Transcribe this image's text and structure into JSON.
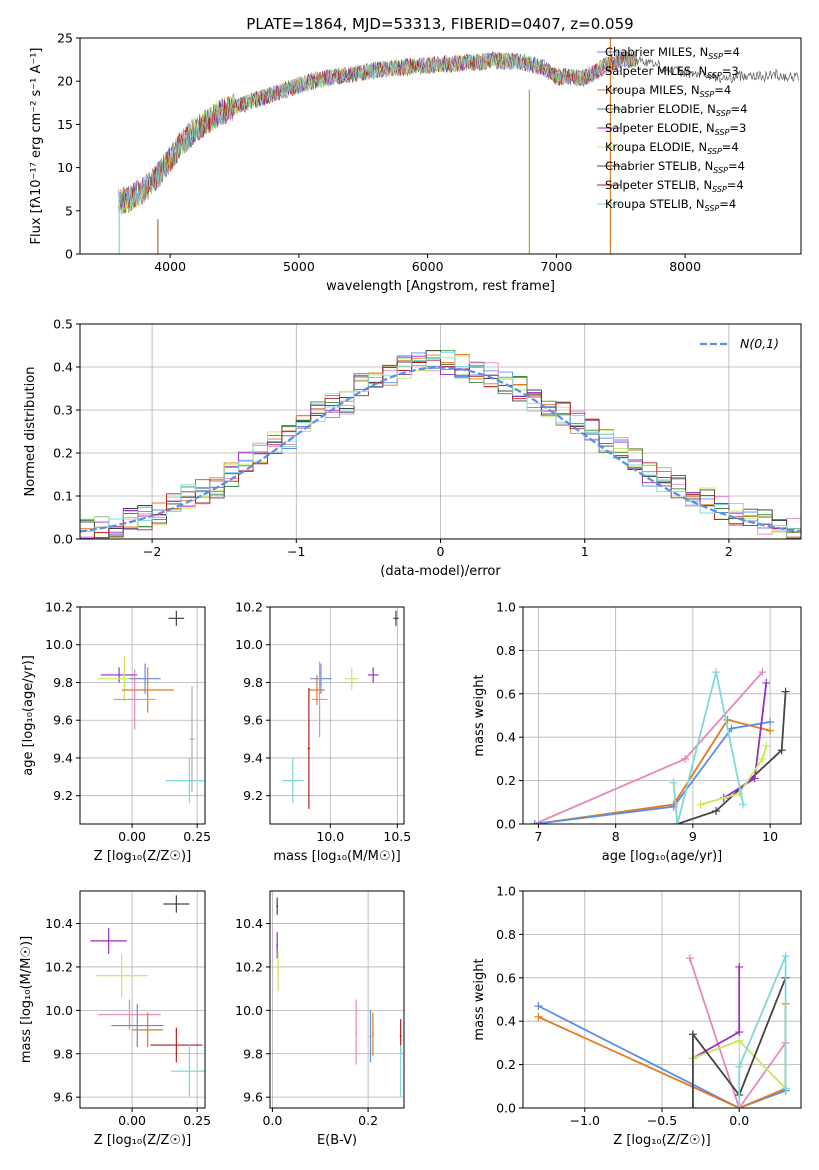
{
  "figure_title": "PLATE=1864, MJD=53313, FIBERID=0407, z=0.059",
  "chart_data": [
    {
      "id": "spectrum",
      "type": "line",
      "title": "PLATE=1864, MJD=53313, FIBERID=0407, z=0.059",
      "xlabel": "wavelength [Angstrom, rest frame]",
      "ylabel": "Flux [fλ10⁻¹⁷ erg cm⁻² s⁻¹ A⁻¹]",
      "xlim": [
        3300,
        8900
      ],
      "ylim": [
        0,
        25
      ],
      "xticks": [
        4000,
        5000,
        6000,
        7000,
        8000
      ],
      "yticks": [
        0,
        5,
        10,
        15,
        20,
        25
      ],
      "grid": false,
      "legend_position": "right",
      "x": [
        3600,
        3700,
        3800,
        3900,
        4000,
        4100,
        4200,
        4300,
        4400,
        4500,
        4600,
        4700,
        4800,
        4900,
        5000,
        5100,
        5200,
        5300,
        5400,
        5500,
        5600,
        5700,
        5800,
        5900,
        6000,
        6100,
        6200,
        6300,
        6400,
        6500,
        6600,
        6700,
        6800,
        6900,
        7000,
        7100,
        7200,
        7300,
        7400,
        7500,
        7600,
        7700,
        7800,
        7900,
        8000,
        8100,
        8200,
        8300,
        8400,
        8500,
        8600,
        8700,
        8800
      ],
      "y": [
        6,
        6.5,
        7.5,
        9,
        11,
        13,
        14.5,
        15.5,
        16.5,
        17,
        17.5,
        18,
        18.5,
        19,
        19.5,
        20,
        20.3,
        20.6,
        20.8,
        21,
        21.3,
        21.5,
        21.6,
        21.7,
        21.8,
        22,
        22,
        22.2,
        22.2,
        22.4,
        22.3,
        22.3,
        22,
        21.5,
        20.5,
        20.5,
        20.3,
        21,
        22,
        22.5,
        22.5,
        22.3,
        21.8,
        21.2,
        21,
        20.8,
        20.5,
        20.3,
        20.5,
        20.8,
        20.5,
        20.8,
        20.5
      ],
      "series": [
        {
          "name": "Chabrier MILES, N_SSP=4",
          "color": "#5b8ee6"
        },
        {
          "name": "Salpeter MILES, N_SSP=3",
          "color": "#e687be"
        },
        {
          "name": "Kroupa MILES, N_SSP=4",
          "color": "#e07b1f"
        },
        {
          "name": "Chabrier ELODIE, N_SSP=4",
          "color": "#3e8e3e"
        },
        {
          "name": "Salpeter ELODIE, N_SSP=3",
          "color": "#9a2dc4"
        },
        {
          "name": "Kroupa ELODIE, N_SSP=4",
          "color": "#c7e85a"
        },
        {
          "name": "Chabrier STELIB, N_SSP=4",
          "color": "#444444"
        },
        {
          "name": "Salpeter STELIB, N_SSP=4",
          "color": "#b22222"
        },
        {
          "name": "Kroupa STELIB, N_SSP=4",
          "color": "#7fd8d8"
        }
      ]
    },
    {
      "id": "residuals",
      "type": "bar",
      "xlabel": "(data-model)/error",
      "ylabel": "Normed distribution",
      "xlim": [
        -2.5,
        2.5
      ],
      "ylim": [
        0,
        0.5
      ],
      "xticks": [
        -2,
        -1,
        0,
        1,
        2
      ],
      "yticks": [
        0.0,
        0.1,
        0.2,
        0.3,
        0.4,
        0.5
      ],
      "grid": true,
      "legend_position": "top-right",
      "legend": "N(0,1)",
      "bins": [
        -2.5,
        -2.4,
        -2.3,
        -2.2,
        -2.1,
        -2.0,
        -1.9,
        -1.8,
        -1.7,
        -1.6,
        -1.5,
        -1.4,
        -1.3,
        -1.2,
        -1.1,
        -1.0,
        -0.9,
        -0.8,
        -0.7,
        -0.6,
        -0.5,
        -0.4,
        -0.3,
        -0.2,
        -0.1,
        0.0,
        0.1,
        0.2,
        0.3,
        0.4,
        0.5,
        0.6,
        0.7,
        0.8,
        0.9,
        1.0,
        1.1,
        1.2,
        1.3,
        1.4,
        1.5,
        1.6,
        1.7,
        1.8,
        1.9,
        2.0,
        2.1,
        2.2,
        2.3,
        2.4
      ],
      "values": [
        0.02,
        0.025,
        0.03,
        0.045,
        0.05,
        0.06,
        0.08,
        0.1,
        0.11,
        0.12,
        0.15,
        0.18,
        0.2,
        0.22,
        0.24,
        0.26,
        0.3,
        0.31,
        0.32,
        0.36,
        0.37,
        0.38,
        0.4,
        0.41,
        0.42,
        0.41,
        0.4,
        0.39,
        0.38,
        0.36,
        0.35,
        0.32,
        0.3,
        0.29,
        0.27,
        0.25,
        0.23,
        0.21,
        0.18,
        0.15,
        0.14,
        0.12,
        0.1,
        0.09,
        0.07,
        0.06,
        0.05,
        0.04,
        0.03,
        0.025
      ]
    },
    {
      "id": "age_vs_Z",
      "type": "scatter",
      "xlabel": "Z [log₁₀(Z/Z☉)]",
      "ylabel": "age  [log₁₀(age/yr)]",
      "xlim": [
        -0.2,
        0.28
      ],
      "ylim": [
        9.05,
        10.2
      ],
      "xticks": [
        0.0,
        0.25
      ],
      "yticks": [
        9.2,
        9.4,
        9.6,
        9.8,
        10.0,
        10.2
      ],
      "grid": true,
      "points": [
        {
          "x": 0.17,
          "y": 10.14,
          "xerr": 0.03,
          "yerr": 0.04,
          "color": "#444444"
        },
        {
          "x": -0.05,
          "y": 9.84,
          "xerr": 0.07,
          "yerr": 0.04,
          "color": "#9a2dc4"
        },
        {
          "x": -0.03,
          "y": 9.82,
          "xerr": 0.1,
          "yerr": 0.12,
          "color": "#c7e85a"
        },
        {
          "x": 0.05,
          "y": 9.82,
          "xerr": 0.06,
          "yerr": 0.08,
          "color": "#5b8ee6"
        },
        {
          "x": 0.06,
          "y": 9.76,
          "xerr": 0.1,
          "yerr": 0.12,
          "color": "#e07b1f"
        },
        {
          "x": 0.01,
          "y": 9.71,
          "xerr": 0.08,
          "yerr": 0.16,
          "color": "#e687be"
        },
        {
          "x": 0.22,
          "y": 9.28,
          "xerr": 0.09,
          "yerr": 0.12,
          "color": "#7fd8d8"
        },
        {
          "x": 0.23,
          "y": 9.5,
          "xerr": 0.01,
          "yerr": 0.28,
          "color": "#b0b0b0"
        }
      ]
    },
    {
      "id": "age_vs_mass",
      "type": "scatter",
      "xlabel": "mass [log₁₀(M/M☉)]",
      "ylabel": "",
      "xlim": [
        9.55,
        10.55
      ],
      "ylim": [
        9.05,
        10.2
      ],
      "xticks": [
        10.0,
        10.5
      ],
      "yticks": [
        9.2,
        9.4,
        9.6,
        9.8,
        10.0,
        10.2
      ],
      "grid": true,
      "points": [
        {
          "x": 10.49,
          "y": 10.14,
          "xerr": 0.02,
          "yerr": 0.04,
          "color": "#444444"
        },
        {
          "x": 10.32,
          "y": 9.84,
          "xerr": 0.04,
          "yerr": 0.04,
          "color": "#9a2dc4"
        },
        {
          "x": 10.16,
          "y": 9.82,
          "xerr": 0.05,
          "yerr": 0.06,
          "color": "#c7e85a"
        },
        {
          "x": 9.93,
          "y": 9.82,
          "xerr": 0.08,
          "yerr": 0.08,
          "color": "#5b8ee6"
        },
        {
          "x": 9.9,
          "y": 9.76,
          "xerr": 0.06,
          "yerr": 0.08,
          "color": "#e07b1f"
        },
        {
          "x": 9.92,
          "y": 9.71,
          "xerr": 0.06,
          "yerr": 0.2,
          "color": "#e687be"
        },
        {
          "x": 9.72,
          "y": 9.28,
          "xerr": 0.08,
          "yerr": 0.12,
          "color": "#7fd8d8"
        },
        {
          "x": 9.84,
          "y": 9.45,
          "xerr": 0.01,
          "yerr": 0.32,
          "color": "#b22222"
        }
      ]
    },
    {
      "id": "weight_vs_age",
      "type": "line",
      "xlabel": "age  [log₁₀(age/yr)]",
      "ylabel": "mass weight",
      "xlim": [
        6.8,
        10.4
      ],
      "ylim": [
        0.0,
        1.0
      ],
      "xticks": [
        7,
        8,
        9,
        10
      ],
      "yticks": [
        0.0,
        0.2,
        0.4,
        0.6,
        0.8,
        1.0
      ],
      "grid": true,
      "series": [
        {
          "color": "#e687be",
          "x": [
            6.95,
            8.9,
            9.9
          ],
          "y": [
            0.0,
            0.3,
            0.7
          ]
        },
        {
          "color": "#e07b1f",
          "x": [
            6.95,
            8.75,
            9.45,
            10.0
          ],
          "y": [
            0.0,
            0.09,
            0.48,
            0.43
          ]
        },
        {
          "color": "#5b8ee6",
          "x": [
            6.95,
            8.75,
            9.5,
            10.0
          ],
          "y": [
            0.0,
            0.08,
            0.44,
            0.47
          ]
        },
        {
          "color": "#444444",
          "x": [
            8.8,
            9.3,
            10.15,
            10.2
          ],
          "y": [
            0.0,
            0.06,
            0.34,
            0.61
          ]
        },
        {
          "color": "#9a2dc4",
          "x": [
            9.4,
            9.8,
            9.95
          ],
          "y": [
            0.12,
            0.21,
            0.65
          ]
        },
        {
          "color": "#c7e85a",
          "x": [
            9.1,
            9.6,
            9.9,
            9.95
          ],
          "y": [
            0.09,
            0.14,
            0.3,
            0.36
          ]
        },
        {
          "color": "#7fd8d8",
          "x": [
            8.75,
            8.8,
            9.3,
            9.65
          ],
          "y": [
            0.19,
            0.0,
            0.7,
            0.09
          ]
        }
      ]
    },
    {
      "id": "mass_vs_Z",
      "type": "scatter",
      "xlabel": "Z [log₁₀(Z/Z☉)]",
      "ylabel": "mass [log₁₀(M/M☉)]",
      "xlim": [
        -0.2,
        0.28
      ],
      "ylim": [
        9.55,
        10.55
      ],
      "xticks": [
        0.0,
        0.25
      ],
      "yticks": [
        9.6,
        9.8,
        10.0,
        10.2,
        10.4
      ],
      "grid": true,
      "points": [
        {
          "x": 0.17,
          "y": 10.49,
          "xerr": 0.05,
          "yerr": 0.04,
          "color": "#444444"
        },
        {
          "x": -0.09,
          "y": 10.32,
          "xerr": 0.07,
          "yerr": 0.06,
          "color": "#9a2dc4"
        },
        {
          "x": -0.04,
          "y": 10.16,
          "xerr": 0.1,
          "yerr": 0.1,
          "color": "#c7e85a"
        },
        {
          "x": -0.01,
          "y": 9.98,
          "xerr": 0.12,
          "yerr": 0.07,
          "color": "#e687be"
        },
        {
          "x": 0.02,
          "y": 9.93,
          "xerr": 0.1,
          "yerr": 0.1,
          "color": "#5b8ee6"
        },
        {
          "x": 0.06,
          "y": 9.91,
          "xerr": 0.06,
          "yerr": 0.08,
          "color": "#e07b1f"
        },
        {
          "x": 0.17,
          "y": 9.84,
          "xerr": 0.1,
          "yerr": 0.08,
          "color": "#b22222"
        },
        {
          "x": 0.22,
          "y": 9.72,
          "xerr": 0.07,
          "yerr": 0.12,
          "color": "#7fd8d8"
        }
      ]
    },
    {
      "id": "mass_vs_ebv",
      "type": "scatter",
      "xlabel": "E(B-V)",
      "ylabel": "",
      "xlim": [
        -0.005,
        0.275
      ],
      "ylim": [
        9.55,
        10.55
      ],
      "xticks": [
        0.0,
        0.2
      ],
      "yticks": [
        9.6,
        9.8,
        10.0,
        10.2,
        10.4
      ],
      "grid": true,
      "points": [
        {
          "x": 0.01,
          "y": 10.48,
          "xerr": 0.002,
          "yerr": 0.04,
          "color": "#444444"
        },
        {
          "x": 0.01,
          "y": 10.3,
          "xerr": 0.002,
          "yerr": 0.06,
          "color": "#9a2dc4"
        },
        {
          "x": 0.012,
          "y": 10.18,
          "xerr": 0.002,
          "yerr": 0.09,
          "color": "#c7e85a"
        },
        {
          "x": 0.175,
          "y": 9.9,
          "xerr": 0.002,
          "yerr": 0.15,
          "color": "#e687be"
        },
        {
          "x": 0.205,
          "y": 9.88,
          "xerr": 0.002,
          "yerr": 0.12,
          "color": "#5b8ee6"
        },
        {
          "x": 0.21,
          "y": 9.89,
          "xerr": 0.002,
          "yerr": 0.1,
          "color": "#e07b1f"
        },
        {
          "x": 0.268,
          "y": 9.88,
          "xerr": 0.002,
          "yerr": 0.08,
          "color": "#b22222"
        },
        {
          "x": 0.268,
          "y": 9.72,
          "xerr": 0.002,
          "yerr": 0.12,
          "color": "#7fd8d8"
        }
      ]
    },
    {
      "id": "weight_vs_Z",
      "type": "line",
      "xlabel": "Z [log₁₀(Z/Z☉)]",
      "ylabel": "mass weight",
      "xlim": [
        -1.4,
        0.4
      ],
      "ylim": [
        0.0,
        1.0
      ],
      "xticks": [
        -1.0,
        -0.5,
        0.0
      ],
      "yticks": [
        0.0,
        0.2,
        0.4,
        0.6,
        0.8,
        1.0
      ],
      "grid": true,
      "series": [
        {
          "color": "#5b8ee6",
          "x": [
            -1.3,
            0.0,
            0.3
          ],
          "y": [
            0.47,
            0.0,
            0.08
          ]
        },
        {
          "color": "#e07b1f",
          "x": [
            -1.3,
            0.0,
            0.3,
            0.3
          ],
          "y": [
            0.42,
            0.0,
            0.09,
            0.48
          ]
        },
        {
          "color": "#e687be",
          "x": [
            -0.32,
            0.0,
            0.3
          ],
          "y": [
            0.69,
            0.0,
            0.3
          ]
        },
        {
          "color": "#9a2dc4",
          "x": [
            -0.3,
            0.0,
            0.0
          ],
          "y": [
            0.23,
            0.35,
            0.65
          ]
        },
        {
          "color": "#c7e85a",
          "x": [
            -0.3,
            0.0,
            0.3
          ],
          "y": [
            0.23,
            0.31,
            0.09
          ]
        },
        {
          "color": "#444444",
          "x": [
            -0.3,
            -0.3,
            0.0,
            0.3
          ],
          "y": [
            0.0,
            0.34,
            0.06,
            0.6
          ]
        },
        {
          "color": "#7fd8d8",
          "x": [
            0.0,
            0.0,
            0.3,
            0.3
          ],
          "y": [
            0.0,
            0.19,
            0.7,
            0.09
          ]
        }
      ]
    }
  ]
}
